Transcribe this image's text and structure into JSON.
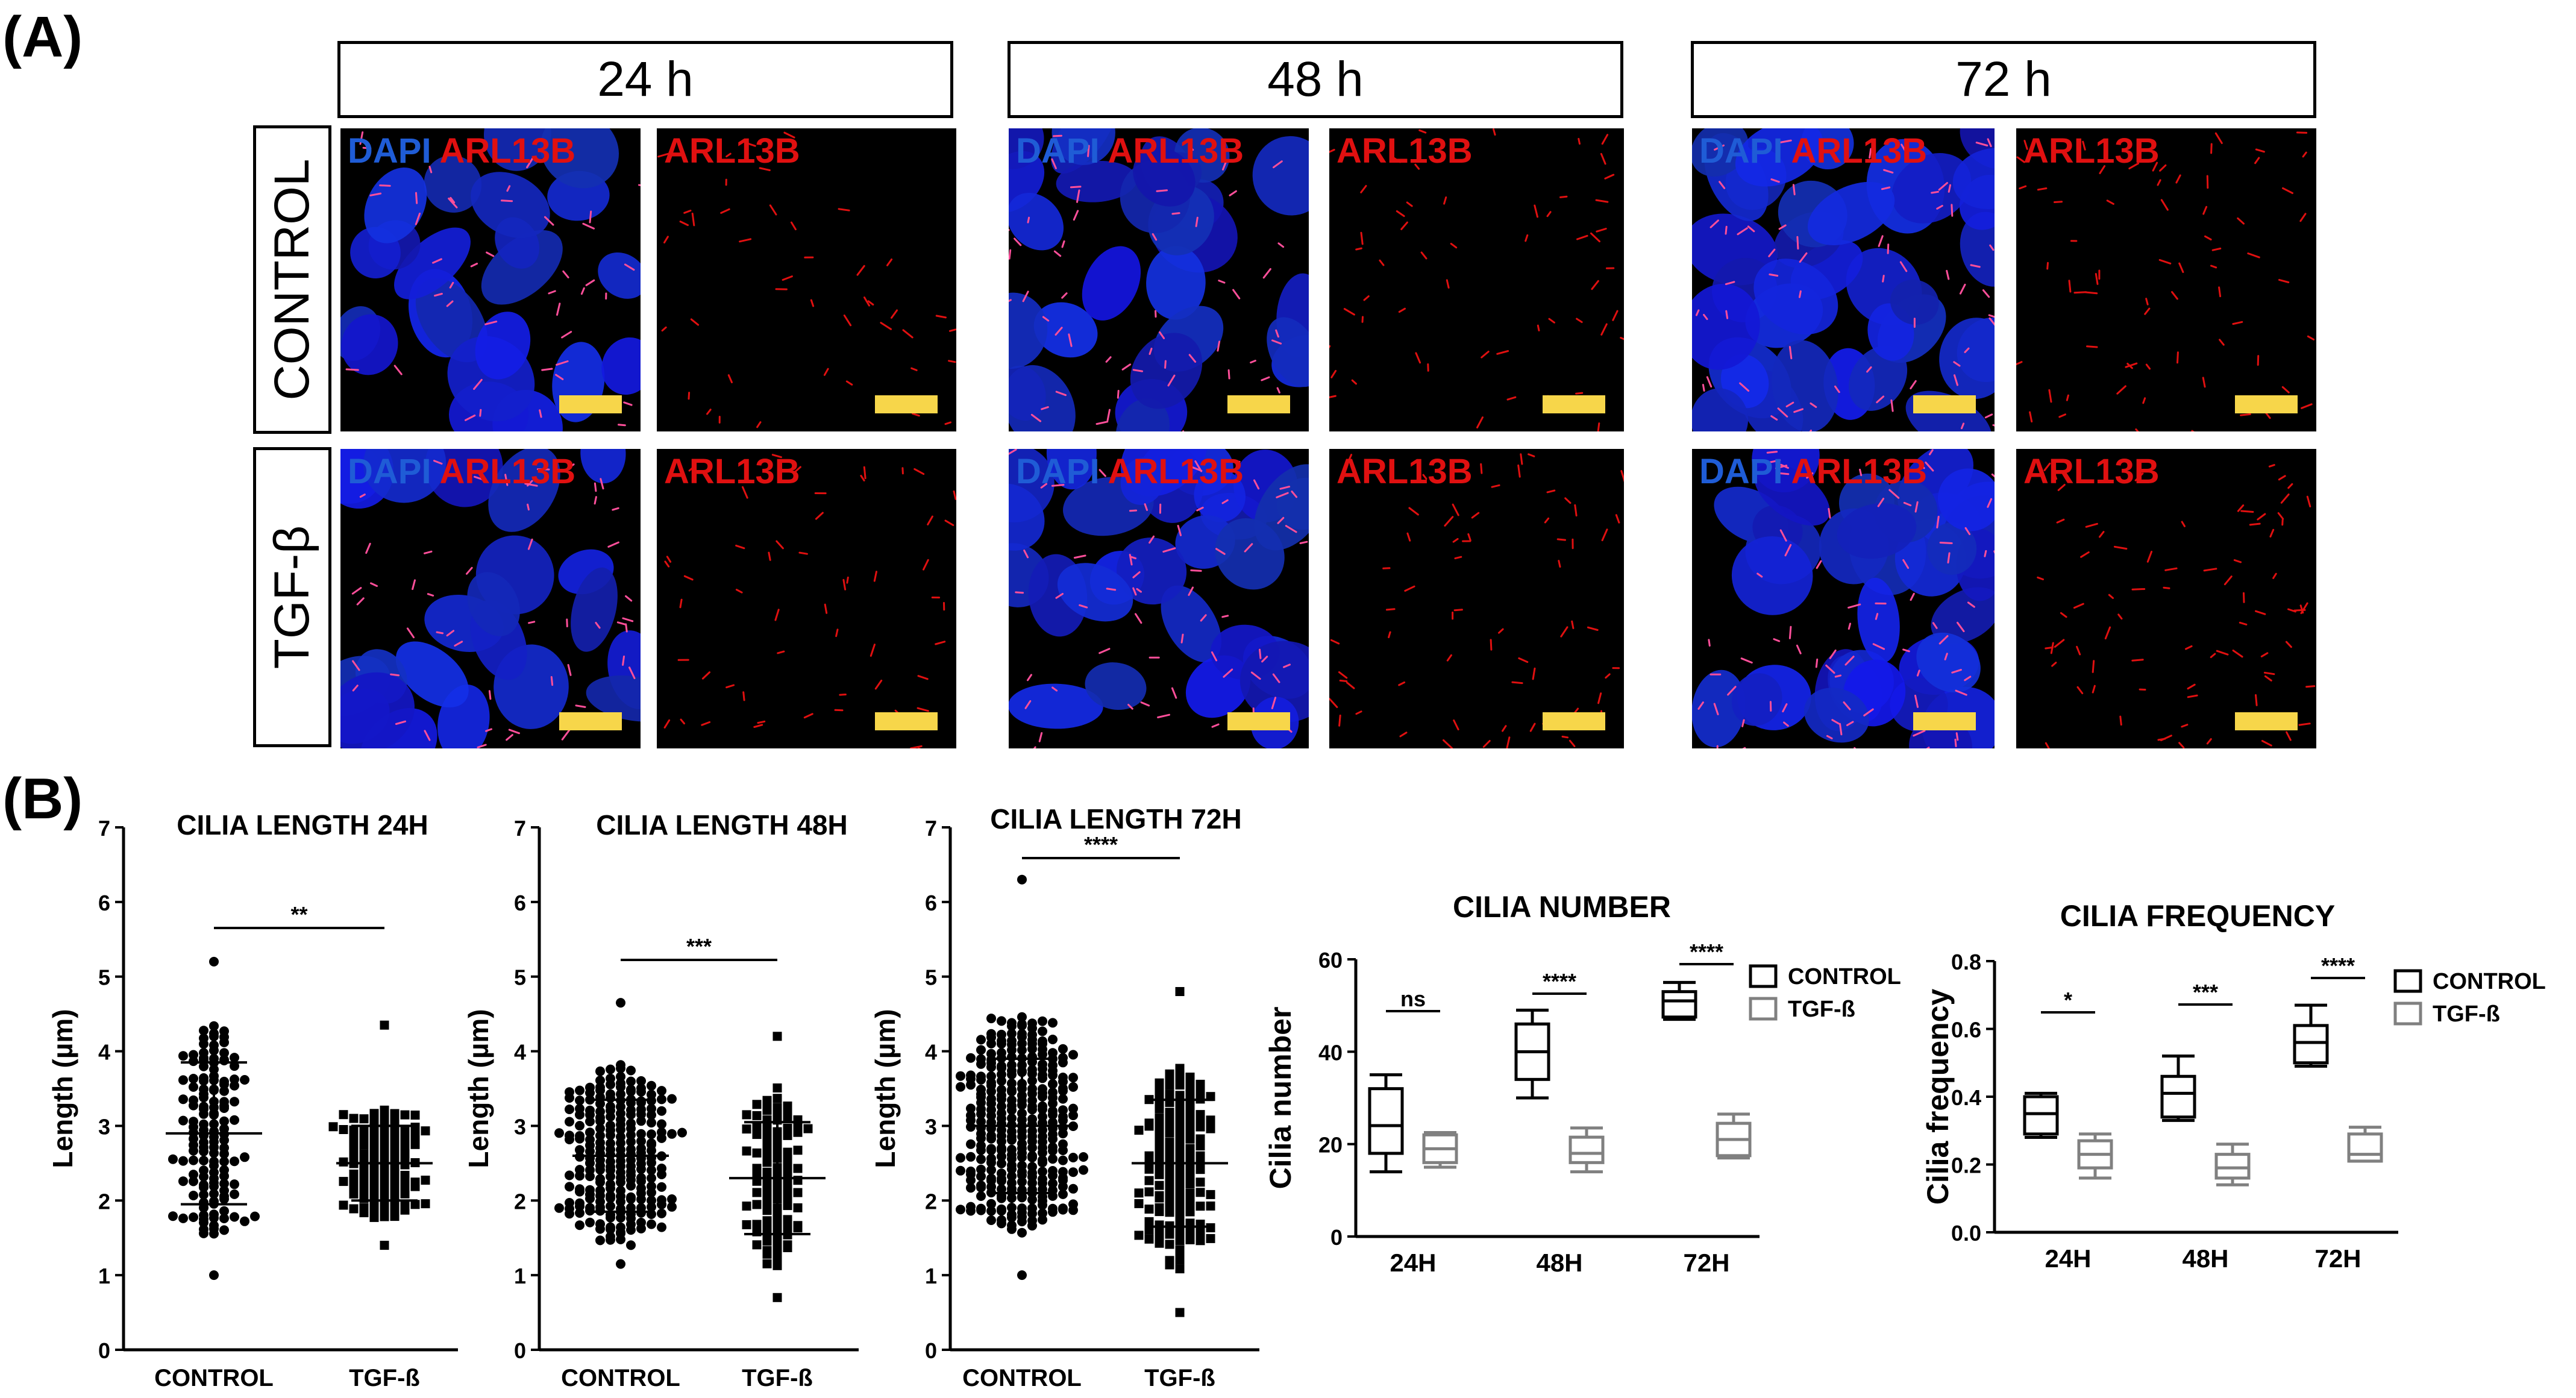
{
  "panel_a": {
    "label": "(A)",
    "time_headers": [
      "24 h",
      "48 h",
      "72 h"
    ],
    "conditions": [
      "CONTROL",
      "TGF-β"
    ],
    "merge_label_dapi": "DAPI",
    "merge_label_arl": "ARL13B",
    "single_label": "ARL13B",
    "colors": {
      "dapi": "#1f5cd6",
      "arl13b": "#e01010",
      "scale_bar": "#f7d64a"
    }
  },
  "panel_b": {
    "label": "(B)"
  },
  "chart_data": [
    {
      "type": "scatter",
      "title": "CILIA LENGTH 24H",
      "ylabel": "Length (µm)",
      "categories": [
        "CONTROL",
        "TGF-ß"
      ],
      "ylim": [
        0,
        7
      ],
      "yticks": [
        0,
        1,
        2,
        3,
        4,
        5,
        6,
        7
      ],
      "series": [
        {
          "category": "CONTROL",
          "n": 140,
          "mean": 2.9,
          "sd": 0.95,
          "min": 1.0,
          "max": 5.2
        },
        {
          "category": "TGF-ß",
          "n": 120,
          "mean": 2.5,
          "sd": 0.5,
          "min": 1.4,
          "max": 4.35
        }
      ],
      "significance": "**"
    },
    {
      "type": "scatter",
      "title": "CILIA LENGTH 48H",
      "ylabel": "Length (µm)",
      "categories": [
        "CONTROL",
        "TGF-ß"
      ],
      "ylim": [
        0,
        7
      ],
      "yticks": [
        0,
        1,
        2,
        3,
        4,
        5,
        6,
        7
      ],
      "series": [
        {
          "category": "CONTROL",
          "n": 230,
          "mean": 2.6,
          "sd": 0.75,
          "min": 1.15,
          "max": 4.65
        },
        {
          "category": "TGF-ß",
          "n": 110,
          "mean": 2.3,
          "sd": 0.75,
          "min": 0.7,
          "max": 4.2
        }
      ],
      "significance": "***"
    },
    {
      "type": "scatter",
      "title": "CILIA LENGTH 72H",
      "ylabel": "Length (µm)",
      "categories": [
        "CONTROL",
        "TGF-ß"
      ],
      "ylim": [
        0,
        7
      ],
      "yticks": [
        0,
        1,
        2,
        3,
        4,
        5,
        6,
        7
      ],
      "series": [
        {
          "category": "CONTROL",
          "n": 320,
          "mean": 3.0,
          "sd": 0.9,
          "min": 1.0,
          "max": 6.3
        },
        {
          "category": "TGF-ß",
          "n": 160,
          "mean": 2.5,
          "sd": 0.85,
          "min": 0.5,
          "max": 4.8
        }
      ],
      "significance": "****"
    },
    {
      "type": "box",
      "title": "CILIA NUMBER",
      "ylabel": "Cilia number",
      "categories": [
        "24H",
        "48H",
        "72H"
      ],
      "ylim": [
        0,
        60
      ],
      "yticks": [
        0,
        20,
        40,
        60
      ],
      "legend": [
        "CONTROL",
        "TGF-ß"
      ],
      "legend_position": "top-right",
      "series": [
        {
          "name": "CONTROL",
          "color": "#000000",
          "boxes": [
            {
              "min": 14,
              "q1": 18,
              "median": 24,
              "q3": 32,
              "max": 35
            },
            {
              "min": 30,
              "q1": 34,
              "median": 40,
              "q3": 46,
              "max": 49
            },
            {
              "min": 47,
              "q1": 47.5,
              "median": 51,
              "q3": 53,
              "max": 55
            }
          ]
        },
        {
          "name": "TGF-ß",
          "color": "#808080",
          "boxes": [
            {
              "min": 15,
              "q1": 16,
              "median": 19,
              "q3": 22,
              "max": 22.5
            },
            {
              "min": 14,
              "q1": 16,
              "median": 18,
              "q3": 21.5,
              "max": 23.5
            },
            {
              "min": 17,
              "q1": 17.5,
              "median": 21,
              "q3": 24.5,
              "max": 26.5
            }
          ]
        }
      ],
      "significance": [
        "ns",
        "****",
        "****"
      ]
    },
    {
      "type": "box",
      "title": "CILIA FREQUENCY",
      "ylabel": "Cilia frequency",
      "categories": [
        "24H",
        "48H",
        "72H"
      ],
      "ylim": [
        0,
        0.8
      ],
      "yticks": [
        0.0,
        0.2,
        0.4,
        0.6,
        0.8
      ],
      "ytick_labels": [
        "0.0",
        "0.2",
        "0.4",
        "0.6",
        "0.8"
      ],
      "legend": [
        "CONTROL",
        "TGF-ß"
      ],
      "legend_position": "top-right",
      "series": [
        {
          "name": "CONTROL",
          "color": "#000000",
          "boxes": [
            {
              "min": 0.28,
              "q1": 0.29,
              "median": 0.35,
              "q3": 0.4,
              "max": 0.41
            },
            {
              "min": 0.33,
              "q1": 0.34,
              "median": 0.41,
              "q3": 0.46,
              "max": 0.52
            },
            {
              "min": 0.49,
              "q1": 0.5,
              "median": 0.56,
              "q3": 0.61,
              "max": 0.67
            }
          ]
        },
        {
          "name": "TGF-ß",
          "color": "#808080",
          "boxes": [
            {
              "min": 0.16,
              "q1": 0.19,
              "median": 0.23,
              "q3": 0.27,
              "max": 0.29
            },
            {
              "min": 0.14,
              "q1": 0.16,
              "median": 0.19,
              "q3": 0.23,
              "max": 0.26
            },
            {
              "min": 0.21,
              "q1": 0.21,
              "median": 0.23,
              "q3": 0.29,
              "max": 0.31
            }
          ]
        }
      ],
      "significance": [
        "*",
        "***",
        "****"
      ]
    }
  ]
}
